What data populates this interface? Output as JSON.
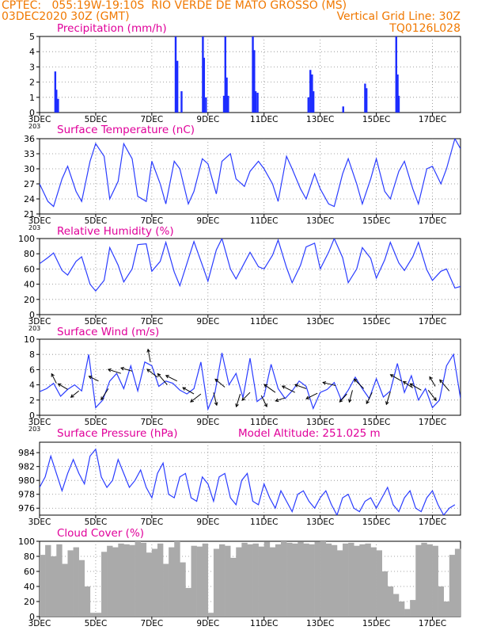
{
  "header": {
    "line1_left": "CPTEC:   055:19W-19:10S  RIO VERDE DE MATO GROSSO (MS)",
    "line2_left": "03DEC2020 30Z (GMT)",
    "line2_right": "Vertical Grid Line: 30Z",
    "line3_right": "TQ0126L028"
  },
  "colors": {
    "header": "#f07800",
    "title": "#e0009a",
    "line": "#2a3cff",
    "bar": "#1c2cff",
    "cloud": "#aaaaaa",
    "wind_arrow": "#000000"
  },
  "chart_data": [
    {
      "id": "precipitation",
      "type": "bar",
      "title": "Precipitation (mm/h)",
      "y_range": [
        0,
        5
      ],
      "y_ticks": [
        "0",
        "1",
        "2",
        "3",
        "4",
        "5"
      ],
      "x_tick_labels": [
        "3DEC",
        "5DEC",
        "7DEC",
        "9DEC",
        "11DEC",
        "13DEC",
        "15DEC",
        "17DEC"
      ],
      "x_stub": "203",
      "grid": true,
      "bars": [
        {
          "day": 3.56,
          "value": 2.7
        },
        {
          "day": 3.6,
          "value": 1.5
        },
        {
          "day": 3.66,
          "value": 0.9
        },
        {
          "day": 7.85,
          "value": 5.0
        },
        {
          "day": 7.91,
          "value": 3.4
        },
        {
          "day": 8.06,
          "value": 1.4
        },
        {
          "day": 8.82,
          "value": 5.0
        },
        {
          "day": 8.86,
          "value": 3.6
        },
        {
          "day": 8.93,
          "value": 1.0
        },
        {
          "day": 9.57,
          "value": 1.1
        },
        {
          "day": 9.62,
          "value": 5.0
        },
        {
          "day": 9.67,
          "value": 2.3
        },
        {
          "day": 9.72,
          "value": 1.1
        },
        {
          "day": 10.6,
          "value": 5.0
        },
        {
          "day": 10.65,
          "value": 4.1
        },
        {
          "day": 10.7,
          "value": 1.4
        },
        {
          "day": 10.77,
          "value": 1.3
        },
        {
          "day": 12.58,
          "value": 1.0
        },
        {
          "day": 12.65,
          "value": 2.8
        },
        {
          "day": 12.71,
          "value": 2.5
        },
        {
          "day": 12.76,
          "value": 1.4
        },
        {
          "day": 13.82,
          "value": 0.4
        },
        {
          "day": 14.6,
          "value": 1.9
        },
        {
          "day": 14.65,
          "value": 1.6
        },
        {
          "day": 15.71,
          "value": 5.0
        },
        {
          "day": 15.76,
          "value": 2.5
        },
        {
          "day": 15.8,
          "value": 1.1
        }
      ]
    },
    {
      "id": "temperature",
      "type": "line",
      "title": "Surface Temperature (nC)",
      "y_range": [
        21,
        36
      ],
      "y_ticks": [
        "21",
        "24",
        "27",
        "30",
        "33",
        "36"
      ],
      "x_tick_labels": [
        "3DEC",
        "5DEC",
        "7DEC",
        "9DEC",
        "11DEC",
        "13DEC",
        "15DEC",
        "17DEC"
      ],
      "x_stub": "203",
      "grid": true,
      "x": [
        3.0,
        3.3,
        3.5,
        3.8,
        4.0,
        4.3,
        4.5,
        4.8,
        5.0,
        5.3,
        5.5,
        5.8,
        6.0,
        6.3,
        6.5,
        6.8,
        7.0,
        7.3,
        7.5,
        7.8,
        8.0,
        8.3,
        8.5,
        8.8,
        9.0,
        9.3,
        9.5,
        9.8,
        10.0,
        10.3,
        10.5,
        10.8,
        11.0,
        11.3,
        11.5,
        11.8,
        12.0,
        12.3,
        12.5,
        12.8,
        13.0,
        13.3,
        13.5,
        13.8,
        14.0,
        14.3,
        14.5,
        14.8,
        15.0,
        15.3,
        15.5,
        15.8,
        16.0,
        16.3,
        16.5,
        16.8,
        17.0,
        17.3,
        17.5,
        17.8,
        18.0
      ],
      "y": [
        27,
        23.5,
        22.5,
        28,
        30.5,
        25.5,
        23.5,
        31.5,
        35,
        32.5,
        24,
        27.5,
        35,
        32,
        24.5,
        23.5,
        31.5,
        27,
        23,
        31.5,
        30,
        23,
        25.5,
        32,
        31,
        25,
        31.5,
        33,
        28,
        26.5,
        29.5,
        31.5,
        30,
        27,
        23.5,
        32.5,
        30,
        26,
        24,
        29,
        26,
        23,
        22.5,
        29,
        32,
        27,
        23,
        28,
        32,
        25.5,
        24,
        29.5,
        31.5,
        26,
        23,
        30,
        30.5,
        27,
        30,
        36,
        34
      ]
    },
    {
      "id": "humidity",
      "type": "line",
      "title": "Relative Humidity (%)",
      "y_range": [
        0,
        100
      ],
      "y_ticks": [
        "0",
        "20",
        "40",
        "60",
        "80",
        "100"
      ],
      "x_tick_labels": [
        "3DEC",
        "5DEC",
        "7DEC",
        "9DEC",
        "11DEC",
        "13DEC",
        "15DEC",
        "17DEC"
      ],
      "x_stub": "203",
      "grid": true,
      "x": [
        3.0,
        3.3,
        3.5,
        3.8,
        4.0,
        4.3,
        4.5,
        4.8,
        5.0,
        5.3,
        5.5,
        5.8,
        6.0,
        6.3,
        6.5,
        6.8,
        7.0,
        7.3,
        7.5,
        7.8,
        8.0,
        8.3,
        8.5,
        8.8,
        9.0,
        9.3,
        9.5,
        9.8,
        10.0,
        10.3,
        10.5,
        10.8,
        11.0,
        11.3,
        11.5,
        11.8,
        12.0,
        12.3,
        12.5,
        12.8,
        13.0,
        13.3,
        13.5,
        13.8,
        14.0,
        14.3,
        14.5,
        14.8,
        15.0,
        15.3,
        15.5,
        15.8,
        16.0,
        16.3,
        16.5,
        16.8,
        17.0,
        17.3,
        17.5,
        17.8,
        18.0
      ],
      "y": [
        67,
        75,
        81,
        58,
        52,
        70,
        76,
        40,
        31,
        45,
        88,
        65,
        43,
        60,
        92,
        93,
        57,
        70,
        95,
        56,
        38,
        73,
        96,
        65,
        44,
        85,
        100,
        60,
        47,
        68,
        82,
        63,
        60,
        78,
        98,
        62,
        42,
        65,
        89,
        94,
        60,
        82,
        100,
        75,
        42,
        60,
        88,
        74,
        48,
        72,
        95,
        68,
        58,
        76,
        95,
        59,
        45,
        57,
        60,
        35,
        37
      ]
    },
    {
      "id": "wind",
      "type": "line",
      "title": "Surface Wind (m/s)",
      "y_range": [
        0,
        10
      ],
      "y_ticks": [
        "0",
        "2",
        "4",
        "6",
        "8",
        "10"
      ],
      "x_tick_labels": [
        "3DEC",
        "5DEC",
        "7DEC",
        "9DEC",
        "11DEC",
        "13DEC",
        "15DEC",
        "17DEC"
      ],
      "x_stub": "203",
      "grid": true,
      "x": [
        3.0,
        3.25,
        3.5,
        3.75,
        4.0,
        4.25,
        4.5,
        4.75,
        5.0,
        5.25,
        5.5,
        5.75,
        6.0,
        6.25,
        6.5,
        6.75,
        7.0,
        7.25,
        7.5,
        7.75,
        8.0,
        8.25,
        8.5,
        8.75,
        9.0,
        9.25,
        9.5,
        9.75,
        10.0,
        10.25,
        10.5,
        10.75,
        11.0,
        11.25,
        11.5,
        11.75,
        12.0,
        12.25,
        12.5,
        12.75,
        13.0,
        13.25,
        13.5,
        13.75,
        14.0,
        14.25,
        14.5,
        14.75,
        15.0,
        15.25,
        15.5,
        15.75,
        16.0,
        16.25,
        16.5,
        16.75,
        17.0,
        17.25,
        17.5,
        17.75,
        18.0
      ],
      "y": [
        3.1,
        3.5,
        4.2,
        2.5,
        3.4,
        4.0,
        3.2,
        8.0,
        1.0,
        2.0,
        4.5,
        5.5,
        3.5,
        6.5,
        3.2,
        7.0,
        6.5,
        3.8,
        4.5,
        4.2,
        3.3,
        2.8,
        3.5,
        7.0,
        0.8,
        3.0,
        8.2,
        4.0,
        5.5,
        2.3,
        7.5,
        1.8,
        2.5,
        6.7,
        3.5,
        2.2,
        3.2,
        4.5,
        3.8,
        0.9,
        3.0,
        3.4,
        4.3,
        2.0,
        3.3,
        5.0,
        3.5,
        2.2,
        4.8,
        2.4,
        3.2,
        6.8,
        3.0,
        5.2,
        2.0,
        3.5,
        1.0,
        2.0,
        6.5,
        8.0,
        2.2
      ],
      "vectors": [
        {
          "day": 3.6,
          "speed": 4.2,
          "dx": -6,
          "dy": -12
        },
        {
          "day": 4.0,
          "speed": 3.4,
          "dx": -12,
          "dy": -7
        },
        {
          "day": 4.4,
          "speed": 3.2,
          "dx": -10,
          "dy": 8
        },
        {
          "day": 5.1,
          "speed": 4.5,
          "dx": -12,
          "dy": -6
        },
        {
          "day": 5.45,
          "speed": 3.5,
          "dx": -9,
          "dy": 14
        },
        {
          "day": 5.9,
          "speed": 5.5,
          "dx": -16,
          "dy": -5
        },
        {
          "day": 6.3,
          "speed": 5.8,
          "dx": -14,
          "dy": -4
        },
        {
          "day": 6.95,
          "speed": 7.0,
          "dx": -3,
          "dy": -16
        },
        {
          "day": 7.2,
          "speed": 5.0,
          "dx": -13,
          "dy": -10
        },
        {
          "day": 7.55,
          "speed": 4.0,
          "dx": -12,
          "dy": -14
        },
        {
          "day": 7.9,
          "speed": 4.5,
          "dx": -14,
          "dy": -7
        },
        {
          "day": 8.5,
          "speed": 2.8,
          "dx": -14,
          "dy": -8
        },
        {
          "day": 8.75,
          "speed": 2.8,
          "dx": -13,
          "dy": 10
        },
        {
          "day": 9.2,
          "speed": 3.0,
          "dx": 4,
          "dy": 16
        },
        {
          "day": 9.6,
          "speed": 3.7,
          "dx": -12,
          "dy": -10
        },
        {
          "day": 10.15,
          "speed": 2.8,
          "dx": -5,
          "dy": 16
        },
        {
          "day": 10.5,
          "speed": 3.0,
          "dx": -10,
          "dy": 10
        },
        {
          "day": 10.9,
          "speed": 2.6,
          "dx": 7,
          "dy": 14
        },
        {
          "day": 11.4,
          "speed": 3.0,
          "dx": -14,
          "dy": -10
        },
        {
          "day": 11.75,
          "speed": 2.3,
          "dx": -12,
          "dy": 4
        },
        {
          "day": 12.1,
          "speed": 3.0,
          "dx": -16,
          "dy": -8
        },
        {
          "day": 12.5,
          "speed": 3.5,
          "dx": -14,
          "dy": -5
        },
        {
          "day": 12.9,
          "speed": 2.9,
          "dx": -14,
          "dy": 7
        },
        {
          "day": 13.55,
          "speed": 3.9,
          "dx": -16,
          "dy": -4
        },
        {
          "day": 13.95,
          "speed": 2.8,
          "dx": -9,
          "dy": 10
        },
        {
          "day": 14.15,
          "speed": 3.3,
          "dx": -4,
          "dy": 15
        },
        {
          "day": 14.55,
          "speed": 3.5,
          "dx": -12,
          "dy": -12
        },
        {
          "day": 14.85,
          "speed": 3.0,
          "dx": -7,
          "dy": 14
        },
        {
          "day": 15.5,
          "speed": 3.1,
          "dx": -5,
          "dy": 16
        },
        {
          "day": 15.9,
          "speed": 4.5,
          "dx": -14,
          "dy": -8
        },
        {
          "day": 16.3,
          "speed": 3.6,
          "dx": -12,
          "dy": -8
        },
        {
          "day": 16.6,
          "speed": 3.3,
          "dx": -14,
          "dy": -8
        },
        {
          "day": 16.85,
          "speed": 3.3,
          "dx": 10,
          "dy": 13
        },
        {
          "day": 17.1,
          "speed": 3.8,
          "dx": -7,
          "dy": -12
        },
        {
          "day": 17.6,
          "speed": 3.2,
          "dx": -12,
          "dy": -14
        }
      ]
    },
    {
      "id": "pressure",
      "type": "line",
      "title": "Surface Pressure (hPa)",
      "subtitle": "Model Altitude: 251.025 m",
      "y_range": [
        975,
        985.5
      ],
      "y_ticks": [
        "976",
        "978",
        "980",
        "982",
        "984"
      ],
      "x_tick_labels": [
        "3DEC",
        "5DEC",
        "7DEC",
        "9DEC",
        "11DEC",
        "13DEC",
        "15DEC",
        "17DEC"
      ],
      "grid": true,
      "x": [
        3.0,
        3.2,
        3.4,
        3.6,
        3.8,
        4.0,
        4.2,
        4.4,
        4.6,
        4.8,
        5.0,
        5.2,
        5.4,
        5.6,
        5.8,
        6.0,
        6.2,
        6.4,
        6.6,
        6.8,
        7.0,
        7.2,
        7.4,
        7.6,
        7.8,
        8.0,
        8.2,
        8.4,
        8.6,
        8.8,
        9.0,
        9.2,
        9.4,
        9.6,
        9.8,
        10.0,
        10.2,
        10.4,
        10.6,
        10.8,
        11.0,
        11.2,
        11.4,
        11.6,
        11.8,
        12.0,
        12.2,
        12.4,
        12.6,
        12.8,
        13.0,
        13.2,
        13.4,
        13.6,
        13.8,
        14.0,
        14.2,
        14.4,
        14.6,
        14.8,
        15.0,
        15.2,
        15.4,
        15.6,
        15.8,
        16.0,
        16.2,
        16.4,
        16.6,
        16.8,
        17.0,
        17.2,
        17.4,
        17.6,
        17.8
      ],
      "y": [
        979,
        980.5,
        983.5,
        981,
        978.5,
        981,
        983,
        981,
        979.5,
        983.5,
        984.5,
        980.5,
        979,
        980,
        983,
        981,
        979,
        980,
        981.5,
        979,
        977.5,
        981,
        982.5,
        978,
        977.5,
        980.5,
        981,
        977.5,
        977,
        980.5,
        979.5,
        977,
        980.5,
        981,
        977.5,
        976.5,
        980,
        981,
        977,
        976.5,
        979.5,
        977.5,
        976,
        978.5,
        977,
        975.5,
        978,
        978.5,
        977,
        976,
        977.5,
        978.5,
        976.5,
        975,
        977.5,
        978,
        976,
        975.5,
        977,
        977.5,
        976,
        977.5,
        979,
        976.5,
        975.5,
        977.5,
        978.5,
        976,
        975.5,
        977.5,
        978.5,
        976.5,
        975,
        976,
        976.5
      ]
    },
    {
      "id": "cloud",
      "type": "area",
      "title": "Cloud Cover (%)",
      "y_range": [
        0,
        100
      ],
      "y_ticks": [
        "0",
        "20",
        "40",
        "60",
        "80",
        "100"
      ],
      "x_tick_labels": [
        "3DEC",
        "5DEC",
        "7DEC",
        "9DEC",
        "11DEC",
        "13DEC",
        "15DEC",
        "17DEC"
      ],
      "grid": true,
      "x": [
        3.0,
        3.2,
        3.4,
        3.6,
        3.8,
        4.0,
        4.2,
        4.4,
        4.6,
        4.8,
        5.0,
        5.2,
        5.4,
        5.6,
        5.8,
        6.0,
        6.2,
        6.4,
        6.6,
        6.8,
        7.0,
        7.2,
        7.4,
        7.6,
        7.8,
        8.0,
        8.2,
        8.4,
        8.6,
        8.8,
        9.0,
        9.2,
        9.4,
        9.6,
        9.8,
        10.0,
        10.2,
        10.4,
        10.6,
        10.8,
        11.0,
        11.2,
        11.4,
        11.6,
        11.8,
        12.0,
        12.2,
        12.4,
        12.6,
        12.8,
        13.0,
        13.2,
        13.4,
        13.6,
        13.8,
        14.0,
        14.2,
        14.4,
        14.6,
        14.8,
        15.0,
        15.2,
        15.4,
        15.6,
        15.8,
        16.0,
        16.2,
        16.4,
        16.6,
        16.8,
        17.0,
        17.2,
        17.4,
        17.6,
        17.8
      ],
      "y": [
        82,
        95,
        80,
        96,
        70,
        88,
        92,
        75,
        40,
        5,
        5,
        86,
        94,
        92,
        97,
        96,
        95,
        100,
        98,
        85,
        90,
        97,
        70,
        92,
        100,
        72,
        38,
        94,
        93,
        97,
        5,
        90,
        96,
        94,
        78,
        92,
        98,
        96,
        97,
        93,
        99,
        92,
        96,
        100,
        98,
        97,
        99,
        97,
        96,
        99,
        100,
        97,
        95,
        88,
        97,
        98,
        94,
        96,
        97,
        92,
        88,
        60,
        40,
        30,
        20,
        10,
        22,
        95,
        98,
        96,
        94,
        40,
        20,
        82,
        90
      ]
    }
  ]
}
